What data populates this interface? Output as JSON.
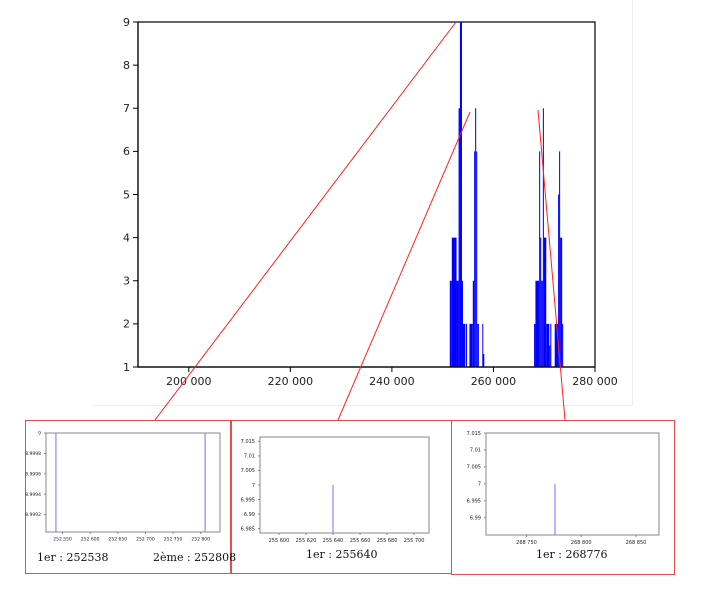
{
  "chart_data": [
    {
      "type": "bar",
      "xlim": [
        190000,
        280000
      ],
      "ylim": [
        1,
        9
      ],
      "xticks": [
        {
          "v": 200000,
          "label": "200 000"
        },
        {
          "v": 220000,
          "label": "220 000"
        },
        {
          "v": 240000,
          "label": "240 000"
        },
        {
          "v": 260000,
          "label": "260 000"
        },
        {
          "v": 280000,
          "label": "280 000"
        }
      ],
      "yticks": [
        {
          "v": 1,
          "label": "1"
        },
        {
          "v": 2,
          "label": "2"
        },
        {
          "v": 3,
          "label": "3"
        },
        {
          "v": 4,
          "label": "4"
        },
        {
          "v": 5,
          "label": "5"
        },
        {
          "v": 6,
          "label": "6"
        },
        {
          "v": 7,
          "label": "7"
        },
        {
          "v": 8,
          "label": "8"
        },
        {
          "v": 9,
          "label": "9"
        }
      ],
      "bar_color": "#0000ff",
      "bars": [
        [
          251400,
          251800,
          3
        ],
        [
          251800,
          252733,
          4
        ],
        [
          252733,
          253133,
          3
        ],
        [
          253133,
          253400,
          7
        ],
        [
          253400,
          253800,
          9
        ],
        [
          253800,
          254000,
          3
        ],
        [
          254000,
          254467,
          2
        ],
        [
          254600,
          254733,
          2
        ],
        [
          255267,
          255933,
          2
        ],
        [
          255933,
          256200,
          3
        ],
        [
          256200,
          256400,
          6
        ],
        [
          256400,
          256600,
          7
        ],
        [
          256600,
          256800,
          6
        ],
        [
          256800,
          257133,
          2
        ],
        [
          257800,
          257933,
          2
        ],
        [
          257933,
          258200,
          1.3
        ],
        [
          268000,
          268267,
          2
        ],
        [
          268267,
          269000,
          3
        ],
        [
          269000,
          269200,
          6
        ],
        [
          269200,
          269400,
          4
        ],
        [
          269400,
          269733,
          3
        ],
        [
          269733,
          269933,
          7
        ],
        [
          269933,
          270400,
          4
        ],
        [
          270400,
          271000,
          2
        ],
        [
          271000,
          271200,
          1.5
        ],
        [
          271200,
          271400,
          2
        ],
        [
          272067,
          272733,
          2
        ],
        [
          272733,
          272933,
          5
        ],
        [
          272933,
          273133,
          6
        ],
        [
          273133,
          273533,
          4
        ],
        [
          273533,
          273733,
          2
        ]
      ]
    },
    {
      "type": "bar",
      "xlim": [
        252520,
        252835
      ],
      "ylim": [
        8.99903,
        9
      ],
      "xticks": [
        {
          "v": 252550,
          "label": "252 550"
        },
        {
          "v": 252600,
          "label": "252 600"
        },
        {
          "v": 252650,
          "label": "252 650"
        },
        {
          "v": 252700,
          "label": "252 700"
        },
        {
          "v": 252750,
          "label": "252 750"
        },
        {
          "v": 252800,
          "label": "252 800"
        }
      ],
      "yticks": [
        {
          "v": 9,
          "label": "9"
        },
        {
          "v": 8.9998,
          "label": "8.9998"
        },
        {
          "v": 8.9996,
          "label": "8.9996"
        },
        {
          "v": 8.9994,
          "label": "8.9994"
        },
        {
          "v": 8.9992,
          "label": "8.9992"
        }
      ],
      "bar_color": "#7070ff",
      "lines": [
        {
          "x": 252538,
          "y": 9
        },
        {
          "x": 252808,
          "y": 9
        }
      ]
    },
    {
      "type": "bar",
      "xlim": [
        255586,
        255711
      ],
      "ylim": [
        6.9835,
        7.0165
      ],
      "xticks": [
        {
          "v": 255600,
          "label": "255 600"
        },
        {
          "v": 255620,
          "label": "255 620"
        },
        {
          "v": 255640,
          "label": "255 640"
        },
        {
          "v": 255660,
          "label": "255 660"
        },
        {
          "v": 255680,
          "label": "255 680"
        },
        {
          "v": 255700,
          "label": "255 700"
        }
      ],
      "yticks": [
        {
          "v": 7.015,
          "label": "7.015"
        },
        {
          "v": 7.01,
          "label": "7.01"
        },
        {
          "v": 7.005,
          "label": "7.005"
        },
        {
          "v": 7,
          "label": "7"
        },
        {
          "v": 6.995,
          "label": "6.995"
        },
        {
          "v": 6.99,
          "label": "6.99"
        },
        {
          "v": 6.985,
          "label": "6.985"
        }
      ],
      "bar_color": "#7070ff",
      "lines": [
        {
          "x": 255640,
          "y": 7
        }
      ]
    },
    {
      "type": "bar",
      "xlim": [
        268713,
        268871
      ],
      "ylim": [
        6.9849,
        7.015
      ],
      "xticks": [
        {
          "v": 268750,
          "label": "268 750"
        },
        {
          "v": 268800,
          "label": "268 800"
        },
        {
          "v": 268850,
          "label": "268 850"
        }
      ],
      "yticks": [
        {
          "v": 7.015,
          "label": "7.015"
        },
        {
          "v": 7.01,
          "label": "7.01"
        },
        {
          "v": 7.005,
          "label": "7.005"
        },
        {
          "v": 7,
          "label": "7"
        },
        {
          "v": 6.995,
          "label": "6.995"
        },
        {
          "v": 6.99,
          "label": "6.99"
        }
      ],
      "bar_color": "#7070ff",
      "lines": [
        {
          "x": 268776,
          "y": 7
        }
      ]
    }
  ],
  "insets": [
    {
      "first": "1er : 252538",
      "second": "2ème : 252808"
    },
    {
      "first": "1er : 255640"
    },
    {
      "first": "1er : 268776"
    }
  ],
  "zoom_line_color": "#ff2020",
  "frame_color": "#e84c4c"
}
